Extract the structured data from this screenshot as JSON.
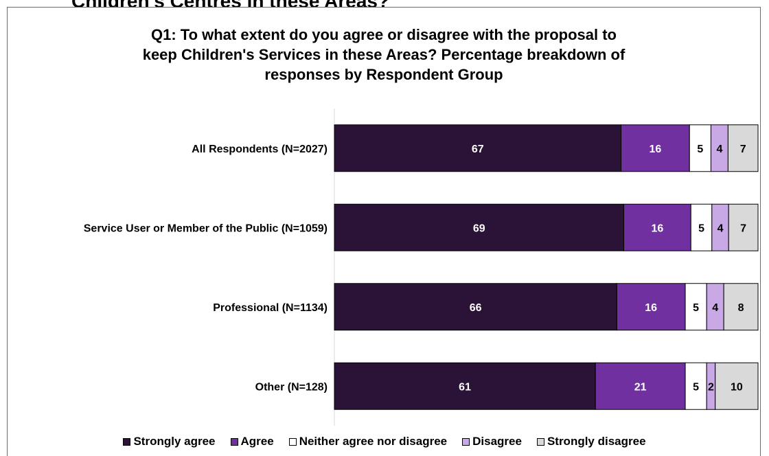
{
  "page": {
    "heading_fragment": "Children's Centres in these Areas?"
  },
  "chart_data": {
    "type": "bar",
    "orientation": "horizontal",
    "stacked": true,
    "title_lines": [
      "Q1: To what extent do you agree or disagree with the proposal to",
      "keep Children's Services in these Areas? Percentage breakdown of",
      "responses by Respondent Group"
    ],
    "categories": [
      "All Respondents (N=2027)",
      "Service User or Member of the Public (N=1059)",
      "Professional (N=1134)",
      "Other (N=128)"
    ],
    "series": [
      {
        "name": "Strongly agree",
        "values": [
          67,
          69,
          66,
          61
        ],
        "color": "#2a1336",
        "label_color": "#ffffff"
      },
      {
        "name": "Agree",
        "values": [
          16,
          16,
          16,
          21
        ],
        "color": "#7030a0",
        "label_color": "#ffffff"
      },
      {
        "name": "Neither agree nor disagree",
        "values": [
          5,
          5,
          5,
          5
        ],
        "color": "#ffffff",
        "label_color": "#000000"
      },
      {
        "name": "Disagree",
        "values": [
          4,
          4,
          4,
          2
        ],
        "color": "#c9a8e6",
        "label_color": "#000000"
      },
      {
        "name": "Strongly disagree",
        "values": [
          7,
          7,
          8,
          10
        ],
        "color": "#d9d9d9",
        "label_color": "#000000"
      }
    ],
    "data_labels": true,
    "legend_position": "bottom",
    "grid": false,
    "xaxis_visible": false
  }
}
